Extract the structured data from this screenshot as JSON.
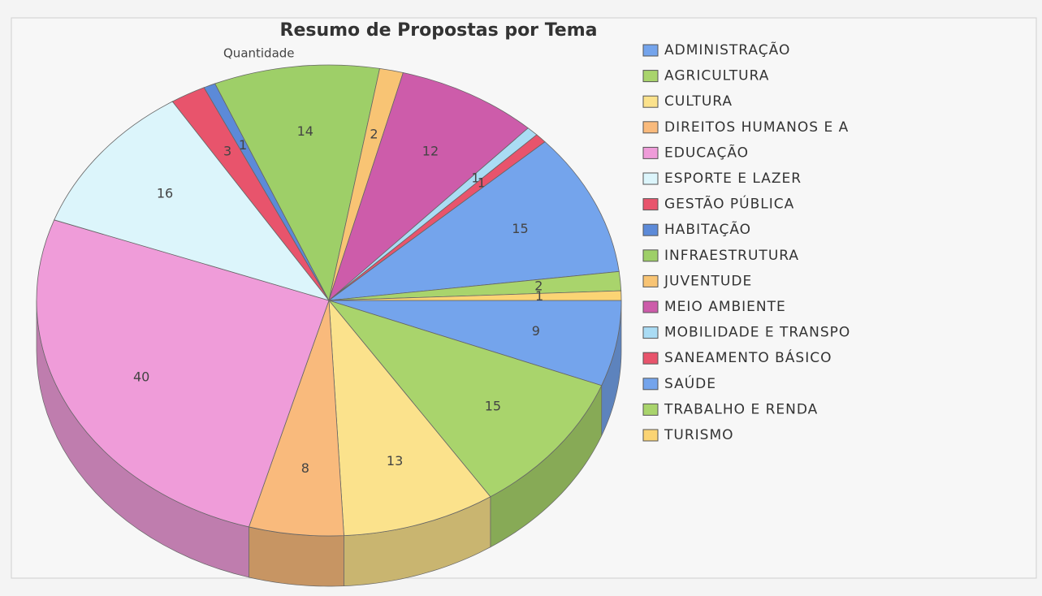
{
  "chart_data": {
    "type": "pie",
    "title": "Resumo de Propostas por Tema",
    "subtitle": "Quantidade",
    "categories": [
      "ADMINISTRAÇÃO",
      "AGRICULTURA",
      "CULTURA",
      "DIREITOS HUMANOS E A",
      "EDUCAÇÃO",
      "ESPORTE E LAZER",
      "GESTÃO PÚBLICA",
      "HABITAÇÃO",
      "INFRAESTRUTURA",
      "JUVENTUDE",
      "MEIO AMBIENTE",
      "MOBILIDADE E TRANSPO",
      "SANEAMENTO BÁSICO",
      "SAÚDE",
      "TRABALHO E RENDA",
      "TURISMO"
    ],
    "values": [
      9,
      15,
      13,
      8,
      40,
      16,
      3,
      1,
      14,
      2,
      12,
      1,
      1,
      15,
      2,
      1
    ],
    "colors": [
      "#74a4ec",
      "#a9d46c",
      "#fbe28c",
      "#f9ba7c",
      "#ef9cd9",
      "#dcf5fb",
      "#e8546c",
      "#5c8ad8",
      "#9ecf68",
      "#f8c474",
      "#cd5caa",
      "#aadcf4",
      "#e8546c",
      "#74a4ec",
      "#a9d46c",
      "#fbd474"
    ],
    "legend": "right"
  }
}
